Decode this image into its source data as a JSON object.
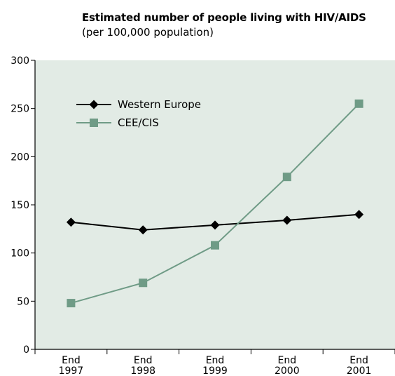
{
  "chart_data": {
    "type": "line",
    "title": "Estimated number of people living with HIV/AIDS",
    "subtitle": "(per 100,000 population)",
    "xlabel": "",
    "ylabel": "",
    "categories": [
      [
        "End",
        "1997"
      ],
      [
        "End",
        "1998"
      ],
      [
        "End",
        "1999"
      ],
      [
        "End",
        "2000"
      ],
      [
        "End",
        "2001"
      ]
    ],
    "ylim": [
      0,
      300
    ],
    "yticks": [
      0,
      50,
      100,
      150,
      200,
      250,
      300
    ],
    "grid": false,
    "legend_position": "top-left",
    "series": [
      {
        "name": "Western Europe",
        "values": [
          132,
          124,
          129,
          134,
          140
        ],
        "color": "#000000",
        "marker": "diamond"
      },
      {
        "name": "CEE/CIS",
        "values": [
          48,
          69,
          108,
          179,
          255
        ],
        "color": "#6f9b86",
        "marker": "square"
      }
    ],
    "colors": {
      "plot_background": "#e2ebe5",
      "axis": "#000000"
    }
  }
}
